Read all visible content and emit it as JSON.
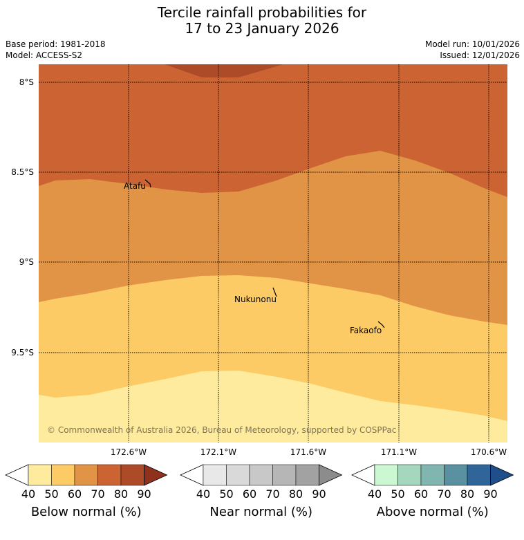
{
  "title_line1": "Tercile rainfall probabilities for",
  "title_line2": "17 to 23 January 2026",
  "meta": {
    "base_period": "Base period: 1981-2018",
    "model": "Model: ACCESS-S2",
    "model_run": "Model run: 10/01/2026",
    "issued": "Issued: 12/01/2026"
  },
  "map": {
    "lat_labels": [
      "8°S",
      "8.5°S",
      "9°S",
      "9.5°S"
    ],
    "lon_labels": [
      "172.6°W",
      "172.1°W",
      "171.6°W",
      "171.1°W",
      "170.6°W"
    ],
    "places": [
      "Atafu",
      "Nukunonu",
      "Fakaofo"
    ],
    "copyright": "© Commonwealth of Australia 2026, Bureau of Meteorology, supported by COSPPac",
    "band_colors": [
      "#ffeb9e",
      "#fdcb66",
      "#e19346",
      "#cb6432",
      "#ad4a28"
    ]
  },
  "colorbars": [
    {
      "label": "Below normal (%)",
      "ticks": [
        "40",
        "50",
        "60",
        "70",
        "80",
        "90"
      ],
      "colors": [
        "#ffffff",
        "#ffeb9e",
        "#fdcb66",
        "#e19346",
        "#cb6432",
        "#ad4a28",
        "#8e321d"
      ]
    },
    {
      "label": "Near normal (%)",
      "ticks": [
        "40",
        "50",
        "60",
        "70",
        "80",
        "90"
      ],
      "colors": [
        "#ffffff",
        "#e8e8e8",
        "#d9d9d9",
        "#c8c8c8",
        "#b6b6b6",
        "#a2a2a2",
        "#8c8c8c"
      ]
    },
    {
      "label": "Above normal (%)",
      "ticks": [
        "40",
        "50",
        "60",
        "70",
        "80",
        "90"
      ],
      "colors": [
        "#ffffff",
        "#ccf7d3",
        "#a4d7bd",
        "#80b5b0",
        "#5a91a0",
        "#2f6598",
        "#1f4e8a"
      ]
    }
  ]
}
